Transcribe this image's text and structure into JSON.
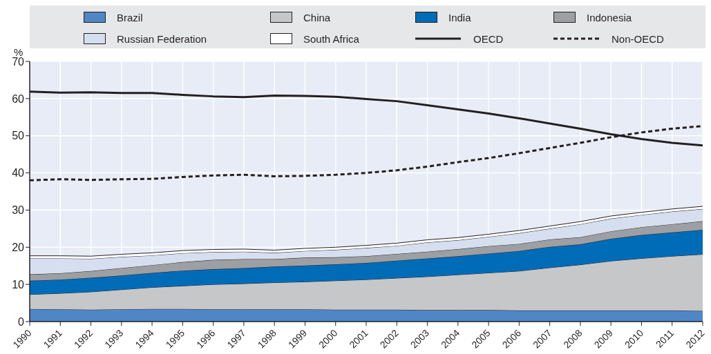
{
  "chart_data": {
    "type": "area",
    "stacked": true,
    "ylabel": "%",
    "categories": [
      "1990",
      "1991",
      "1992",
      "1993",
      "1994",
      "1995",
      "1996",
      "1997",
      "1998",
      "1999",
      "2000",
      "2001",
      "2002",
      "2003",
      "2004",
      "2005",
      "2006",
      "2007",
      "2008",
      "2009",
      "2010",
      "2011",
      "2012"
    ],
    "series": [
      {
        "name": "Brazil",
        "color": "#4f86c6",
        "values": [
          3.4,
          3.3,
          3.2,
          3.3,
          3.4,
          3.4,
          3.3,
          3.3,
          3.3,
          3.3,
          3.2,
          3.2,
          3.2,
          3.1,
          3.1,
          3.1,
          3.0,
          3.0,
          3.0,
          3.0,
          3.0,
          3.0,
          2.9
        ]
      },
      {
        "name": "China",
        "color": "#c6c7c9",
        "values": [
          3.9,
          4.3,
          4.8,
          5.3,
          5.8,
          6.2,
          6.7,
          6.9,
          7.2,
          7.4,
          7.8,
          8.1,
          8.5,
          9.0,
          9.5,
          10.0,
          10.6,
          11.5,
          12.3,
          13.3,
          14.0,
          14.6,
          15.2
        ]
      },
      {
        "name": "India",
        "color": "#006bb6",
        "values": [
          3.7,
          3.7,
          3.8,
          3.8,
          3.9,
          4.1,
          4.1,
          4.2,
          4.3,
          4.4,
          4.4,
          4.5,
          4.7,
          4.9,
          5.0,
          5.2,
          5.4,
          5.6,
          5.5,
          6.0,
          6.3,
          6.4,
          6.6
        ]
      },
      {
        "name": "Indonesia",
        "color": "#9d9fa2",
        "values": [
          1.7,
          1.7,
          1.8,
          2.0,
          2.1,
          2.3,
          2.5,
          2.4,
          2.0,
          2.1,
          1.9,
          1.8,
          1.8,
          1.8,
          1.9,
          2.0,
          1.9,
          2.0,
          1.9,
          2.0,
          2.1,
          2.2,
          2.3
        ]
      },
      {
        "name": "Russian Federation",
        "color": "#d5dff0",
        "values": [
          4.3,
          4.0,
          3.3,
          3.0,
          2.6,
          2.4,
          2.1,
          2.0,
          1.7,
          1.8,
          2.0,
          2.2,
          2.2,
          2.5,
          2.4,
          2.5,
          2.9,
          2.9,
          3.5,
          3.4,
          3.3,
          3.4,
          3.3
        ]
      },
      {
        "name": "South Africa",
        "color": "#ffffff",
        "values": [
          0.7,
          0.7,
          0.7,
          0.7,
          0.7,
          0.7,
          0.7,
          0.7,
          0.7,
          0.7,
          0.7,
          0.7,
          0.7,
          0.7,
          0.7,
          0.7,
          0.7,
          0.7,
          0.7,
          0.7,
          0.7,
          0.7,
          0.7
        ]
      },
      {
        "name": "OECD",
        "type": "line",
        "line_style": "solid",
        "color": "#231f20",
        "values": [
          61.9,
          61.6,
          61.7,
          61.5,
          61.5,
          61.0,
          60.6,
          60.4,
          60.8,
          60.7,
          60.5,
          59.9,
          59.3,
          58.2,
          57.1,
          56.0,
          54.7,
          53.3,
          51.9,
          50.4,
          49.1,
          48.1,
          47.4
        ]
      },
      {
        "name": "Non-OECD",
        "type": "line",
        "line_style": "dashed",
        "color": "#231f20",
        "values": [
          38.0,
          38.3,
          38.1,
          38.3,
          38.4,
          38.9,
          39.3,
          39.5,
          39.1,
          39.2,
          39.5,
          40.0,
          40.7,
          41.7,
          42.9,
          44.0,
          45.3,
          46.7,
          48.1,
          49.6,
          50.9,
          51.9,
          52.6
        ]
      }
    ],
    "ylim": [
      0,
      70
    ],
    "yticks": [
      0,
      10,
      20,
      30,
      40,
      50,
      60,
      70
    ],
    "grid": true,
    "legend": "top",
    "marker": "none"
  }
}
